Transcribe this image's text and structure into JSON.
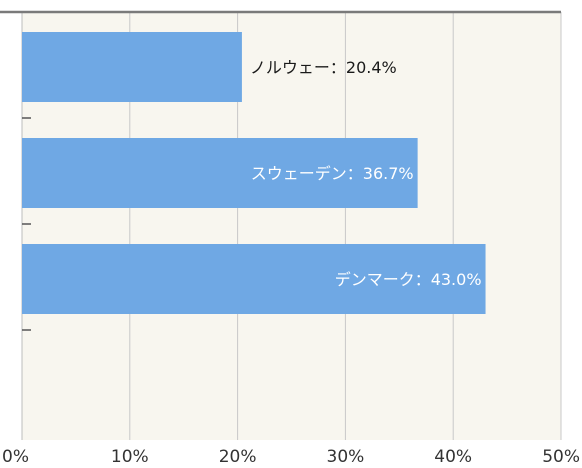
{
  "colors": {
    "plot_background": "#f8f6ef",
    "bar": "#6fa8e4",
    "grid": "#c8c8c8",
    "frame": "#7a7a7a",
    "label_outside": "#1a1a1a",
    "label_inside": "#ffffff"
  },
  "chart_data": {
    "type": "bar",
    "orientation": "horizontal",
    "categories": [
      "ノルウェー",
      "スウェーデン",
      "デンマーク"
    ],
    "values": [
      20.4,
      36.7,
      43.0
    ],
    "data_labels": [
      "ノルウェー：20.4%",
      "スウェーデン：36.7%",
      "デンマーク：43.0%"
    ],
    "xlim": [
      0,
      50
    ],
    "x_ticks": [
      0,
      10,
      20,
      30,
      40,
      50
    ],
    "x_tick_labels": [
      "0%",
      "10%",
      "20%",
      "30%",
      "40%",
      "50%"
    ],
    "grid": true
  }
}
